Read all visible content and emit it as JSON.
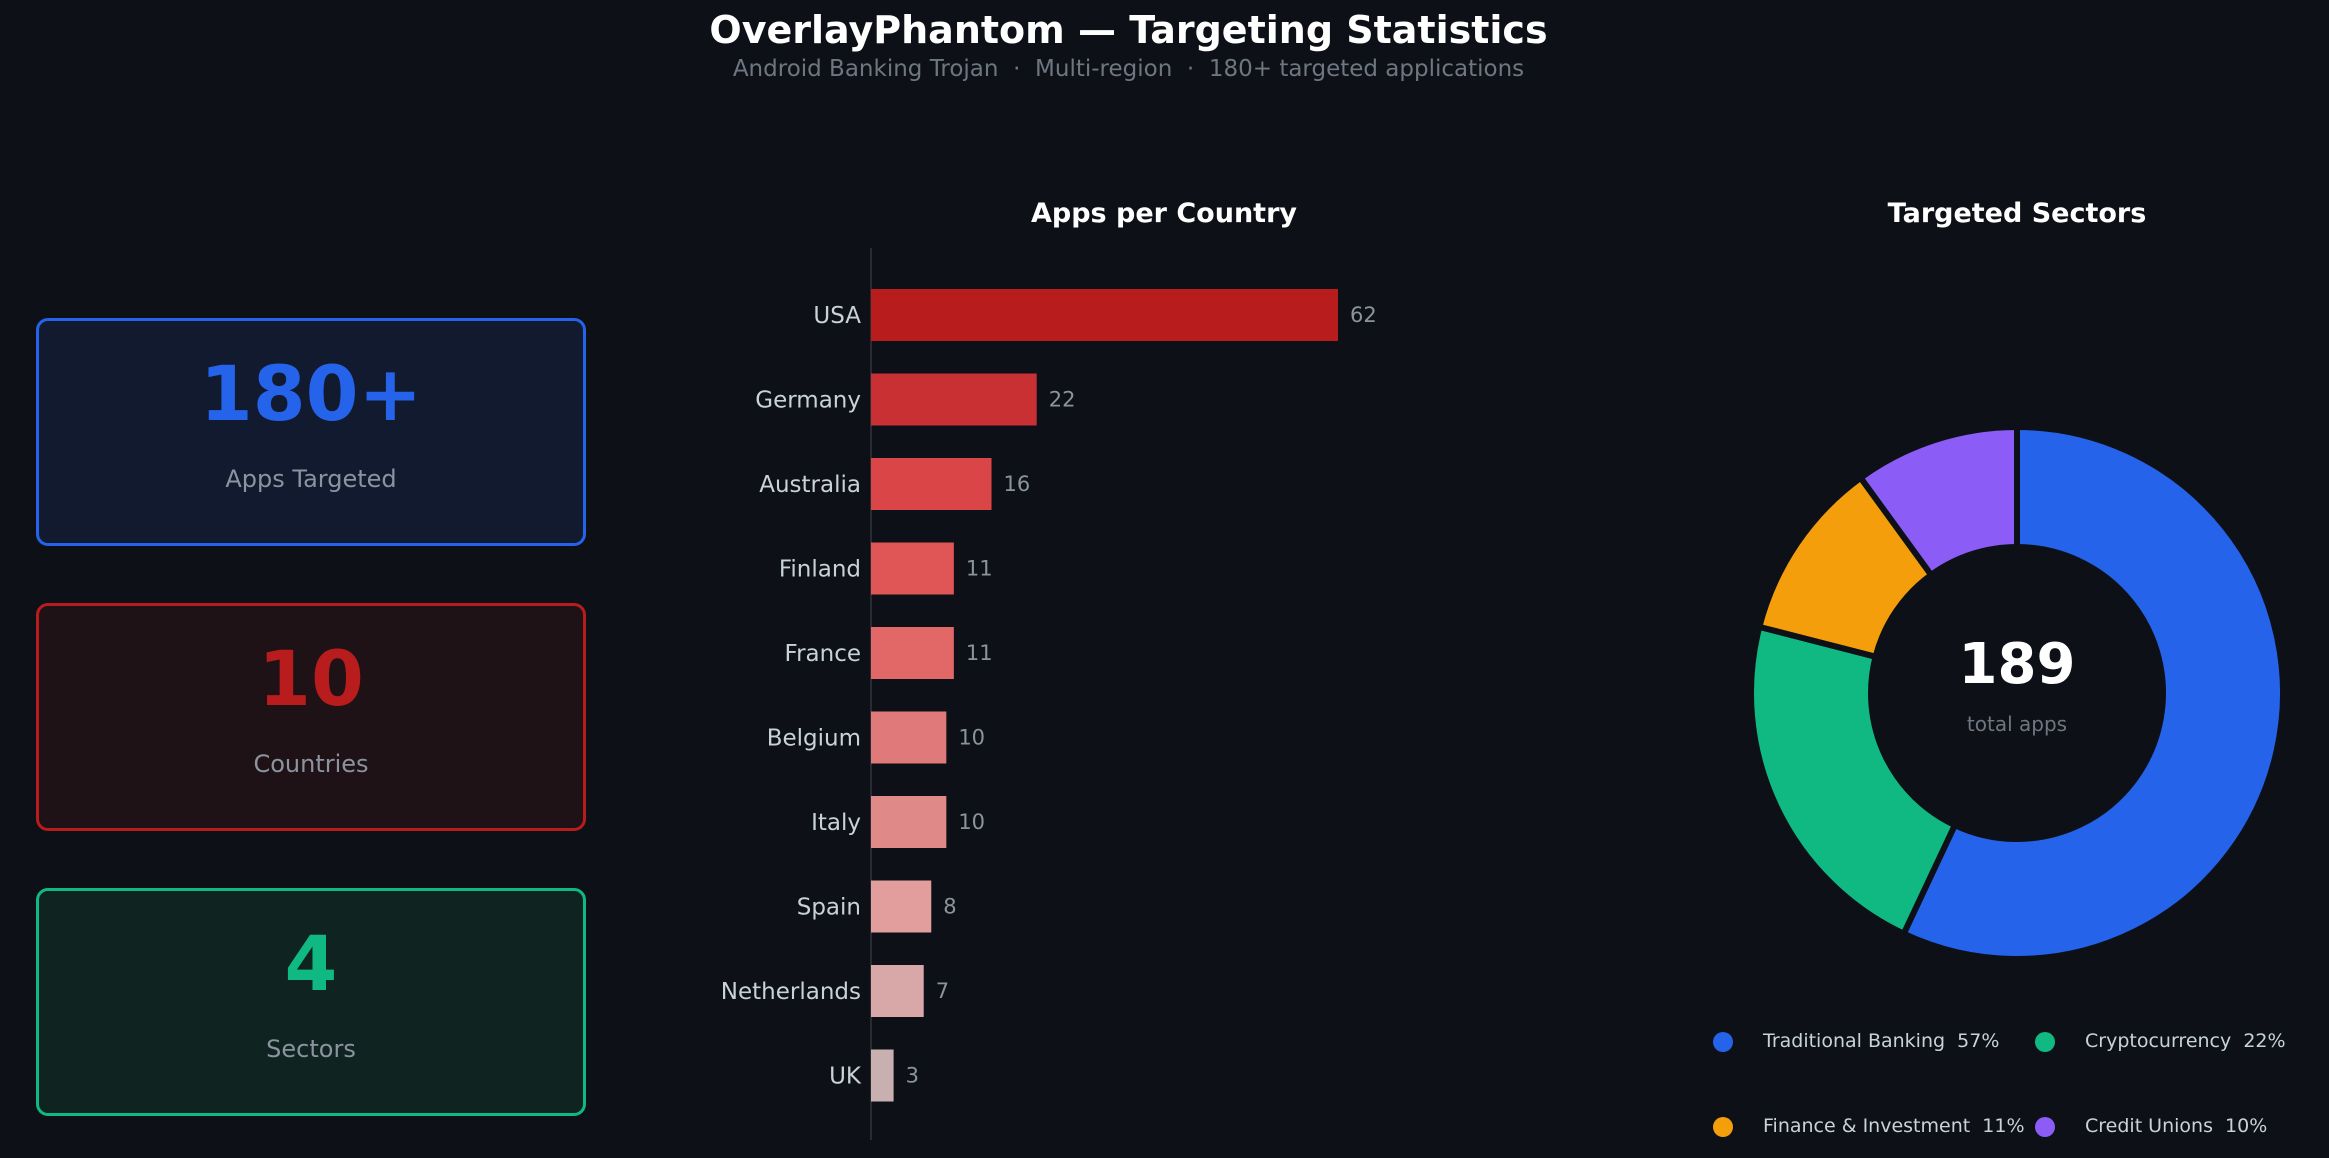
{
  "header": {
    "title": "OverlayPhantom — Targeting Statistics",
    "subtitle": "Android Banking Trojan  ·  Multi-region  ·  180+ targeted applications"
  },
  "cards": {
    "apps": {
      "value": "180+",
      "label": "Apps Targeted",
      "color": "#2563eb"
    },
    "countries": {
      "value": "10",
      "label": "Countries",
      "color": "#b91c1c"
    },
    "sectors": {
      "value": "4",
      "label": "Sectors",
      "color": "#10b981"
    }
  },
  "chart_data": [
    {
      "type": "bar",
      "orientation": "horizontal",
      "title": "Apps per Country",
      "categories": [
        "USA",
        "Germany",
        "Australia",
        "Finland",
        "France",
        "Belgium",
        "Italy",
        "Spain",
        "Netherlands",
        "UK"
      ],
      "values": [
        62,
        22,
        16,
        11,
        11,
        10,
        10,
        8,
        7,
        3
      ],
      "colors": [
        "#b91c1c",
        "#c83034",
        "#da4548",
        "#e05656",
        "#e26767",
        "#e07a7a",
        "#e08989",
        "#e29d9d",
        "#d8a8a8",
        "#c9b0b0"
      ],
      "data_labels": true,
      "xlim": [
        0,
        70
      ],
      "grid": false
    },
    {
      "type": "pie",
      "donut": true,
      "title": "Targeted Sectors",
      "center_value": "189",
      "center_label": "total apps",
      "slices": [
        {
          "label": "Traditional Banking",
          "percent": 57,
          "display": "Traditional Banking  57%",
          "color": "#2563eb"
        },
        {
          "label": "Cryptocurrency",
          "percent": 22,
          "display": "Cryptocurrency  22%",
          "color": "#10b981"
        },
        {
          "label": "Finance & Investment",
          "percent": 11,
          "display": "Finance & Investment  11%",
          "color": "#f59e0b"
        },
        {
          "label": "Credit Unions",
          "percent": 10,
          "display": "Credit Unions  10%",
          "color": "#8b5cf6"
        }
      ],
      "legend_position": "bottom"
    }
  ]
}
